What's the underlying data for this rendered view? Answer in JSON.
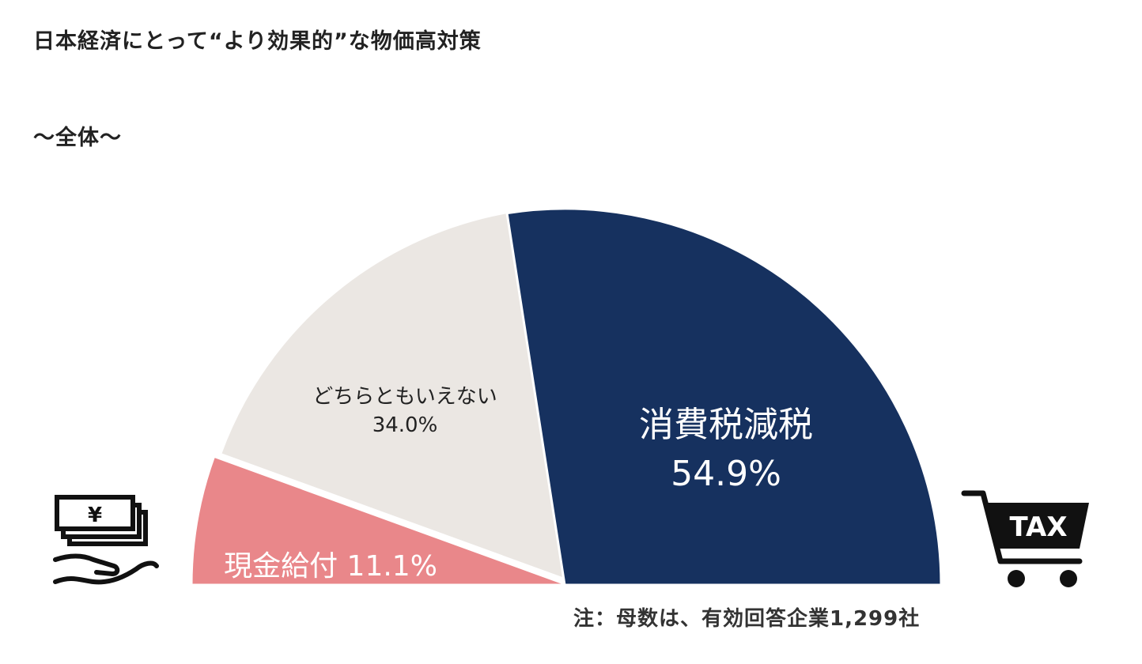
{
  "header": {
    "title": "日本経済にとって“より効果的”な物価高対策",
    "subtitle": "〜全体〜"
  },
  "chart_data": {
    "type": "pie",
    "layout": "semicircle",
    "title": "日本経済にとって“より効果的”な物価高対策",
    "subtitle": "〜全体〜",
    "slices": [
      {
        "label": "現金給付",
        "value": 11.1,
        "value_label": "11.1%",
        "color": "#e9878a",
        "label_color": "#ffffff"
      },
      {
        "label": "どちらともいえない",
        "value": 34.0,
        "value_label": "34.0%",
        "color": "#ebe7e3",
        "label_color": "#222222"
      },
      {
        "label": "消費税減税",
        "value": 54.9,
        "value_label": "54.9%",
        "color": "#16315f",
        "label_color": "#ffffff"
      }
    ],
    "note": "注：母数は、有効回答企業1,299社"
  },
  "icons": {
    "left": "cash-in-hand-icon",
    "right": "tax-shopping-cart-icon",
    "yen_symbol": "¥",
    "tax_text": "TAX"
  }
}
